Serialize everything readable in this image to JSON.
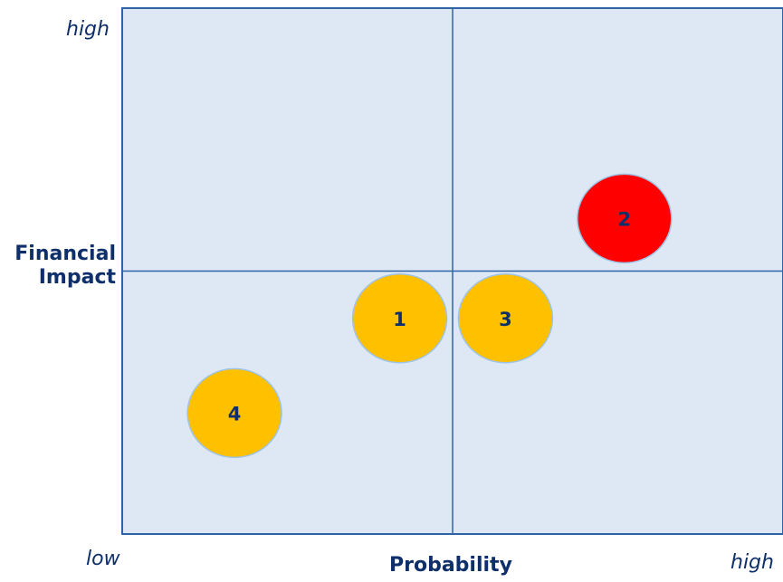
{
  "labels": {
    "y_high": "high",
    "x_low": "low",
    "x_high": "high",
    "y_title_line1": "Financial",
    "y_title_line2": "Impact",
    "x_title": "Probability"
  },
  "colors": {
    "panel_fill": "#dde8f4",
    "panel_border": "#2e63a6",
    "quadrant_line": "#2e63a6",
    "bubble_medium": "#ffc000",
    "bubble_high": "#ff0000",
    "bubble_outline": "#9dc3e6",
    "text": "#0f2f6b"
  },
  "chart_data": {
    "type": "scatter",
    "xlabel": "Probability",
    "ylabel": "Financial Impact",
    "xlim": [
      0,
      100
    ],
    "ylim": [
      0,
      100
    ],
    "x_ticks": [
      "low",
      "high"
    ],
    "y_ticks": [
      "high"
    ],
    "grid": false,
    "quadrant_divider": {
      "x": 50,
      "y": 50
    },
    "points": [
      {
        "label": "1",
        "x": 42,
        "y": 41,
        "color": "#ffc000"
      },
      {
        "label": "2",
        "x": 76,
        "y": 60,
        "color": "#ff0000"
      },
      {
        "label": "3",
        "x": 58,
        "y": 41,
        "color": "#ffc000"
      },
      {
        "label": "4",
        "x": 17,
        "y": 23,
        "color": "#ffc000"
      }
    ]
  }
}
